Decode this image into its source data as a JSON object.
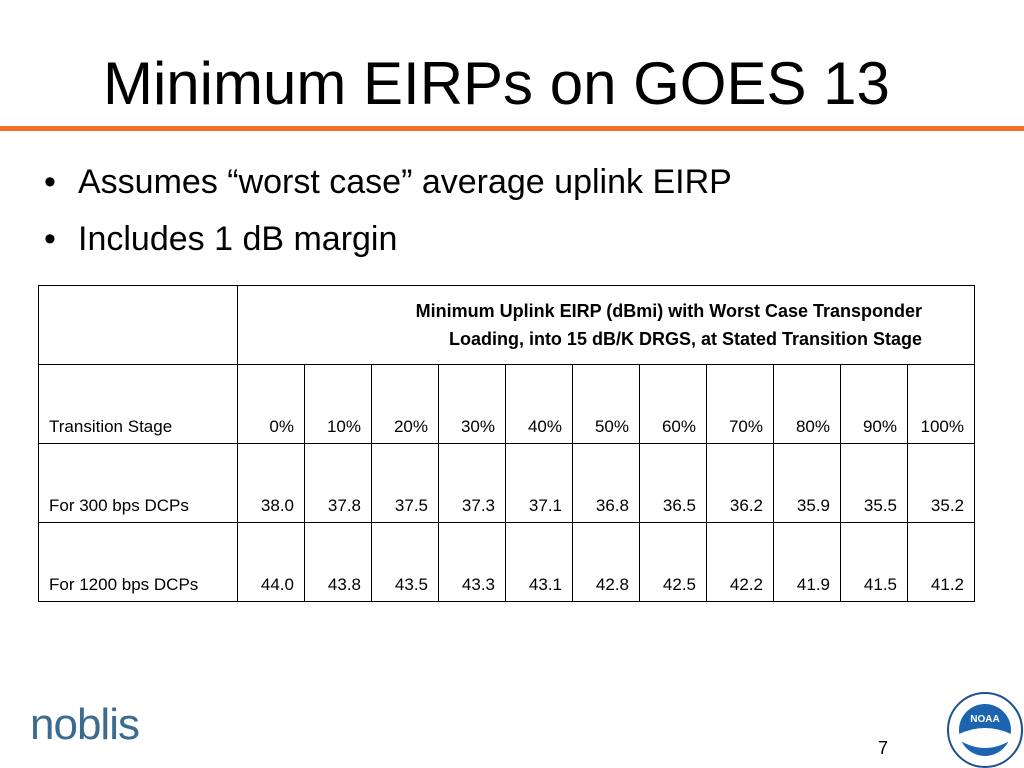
{
  "header": {
    "title": "Minimum EIRPs on GOES 13"
  },
  "bullets": [
    "Assumes “worst case” average uplink EIRP",
    "Includes 1 dB margin"
  ],
  "table": {
    "caption_lines": [
      "Minimum Uplink EIRP (dBmi) with Worst Case Transponder",
      "Loading, into 15 dB/K DRGS, at Stated Transition Stage"
    ],
    "rows": [
      [
        "Transition Stage",
        "0%",
        "10%",
        "20%",
        "30%",
        "40%",
        "50%",
        "60%",
        "70%",
        "80%",
        "90%",
        "100%"
      ],
      [
        "For 300 bps DCPs",
        "38.0",
        "37.8",
        "37.5",
        "37.3",
        "37.1",
        "36.8",
        "36.5",
        "36.2",
        "35.9",
        "35.5",
        "35.2"
      ],
      [
        "For 1200 bps DCPs",
        "44.0",
        "43.8",
        "43.5",
        "43.3",
        "43.1",
        "42.8",
        "42.5",
        "42.2",
        "41.9",
        "41.5",
        "41.2"
      ]
    ]
  },
  "footer": {
    "logo": "noblis",
    "page_number": "7",
    "seal": "NOAA"
  }
}
